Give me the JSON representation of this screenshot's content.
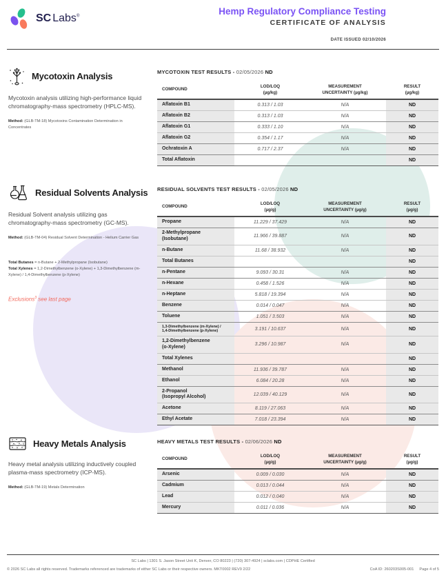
{
  "header": {
    "logo_sc": "SC",
    "logo_labs": "Labs",
    "logo_reg": "®",
    "title": "Hemp Regulatory Compliance Testing",
    "subtitle": "CERTIFICATE OF ANALYSIS",
    "date_issued": "DATE ISSUED 02/10/2026"
  },
  "colors": {
    "accent_purple": "#7a52f4",
    "logo_green": "#25bf8e",
    "logo_orange": "#f97a5d",
    "logo_navy": "#232150",
    "exclusions_red": "#f2695c",
    "circle_purple": "#eae6f8",
    "circle_teal": "#dfeeea",
    "circle_pink": "#fbeae6",
    "table_gray": "#e9e9e9"
  },
  "sections": [
    {
      "icon": "mycotoxin-spore-icon",
      "title": "Mycotoxin Analysis",
      "description": "Mycotoxin analysis utilizing high-performance liquid chromatography-mass spectrometry (HPLC-MS).",
      "method_label": "Method:",
      "method_text": " (GLB-TM-18) Mycotoxins Contamination Determination in Concentrates",
      "table": {
        "title": "MYCOTOXIN TEST RESULTS - ",
        "date": "02/05/2026 ",
        "overall_result": "ND",
        "columns": [
          {
            "label": "COMPOUND",
            "unit": ""
          },
          {
            "label": "LOD/LOQ",
            "unit": "(µg/kg)"
          },
          {
            "label": "MEASUREMENT",
            "unit": "UNCERTAINTY (µg/kg)"
          },
          {
            "label": "RESULT",
            "unit": "(µg/kg)"
          }
        ],
        "rows": [
          {
            "compound": "Aflatoxin B1",
            "lod_loq": "0.313 / 1.03",
            "uncertainty": "N/A",
            "result": "ND"
          },
          {
            "compound": "Aflatoxin B2",
            "lod_loq": "0.313 / 1.03",
            "uncertainty": "N/A",
            "result": "ND",
            "sep": true
          },
          {
            "compound": "Aflatoxin G1",
            "lod_loq": "0.333 / 1.10",
            "uncertainty": "N/A",
            "result": "ND"
          },
          {
            "compound": "Aflatoxin G2",
            "lod_loq": "0.354 / 1.17",
            "uncertainty": "N/A",
            "result": "ND",
            "sep": true
          },
          {
            "compound": "Ochratoxin A",
            "lod_loq": "0.717 / 2.37",
            "uncertainty": "N/A",
            "result": "ND",
            "sep": true
          },
          {
            "compound": "Total Aflatoxin",
            "lod_loq": "",
            "uncertainty": "",
            "result": "ND"
          }
        ]
      }
    },
    {
      "icon": "flasks-icon",
      "title": "Residual Solvents Analysis",
      "description": "Residual Solvent analysis utilizing gas chromatography-mass spectrometry (GC-MS).",
      "method_label": "Method:",
      "method_text": " (GLB-TM-04) Residual Solvent Determination - Helium Carrier Gas",
      "note_butanes_label": "Total Butanes",
      "note_butanes_text": " = n-Butane + 2-Methylpropane (Isobutane)",
      "note_xylenes_label": "Total Xylenes",
      "note_xylenes_text": " = 1,2-Dimethylbenzene (o-Xylene) + 1,3-Dimethylbenzene (m-Xylene) / 1,4-Dimethylbenzene (p-Xylene)",
      "exclusions_word": "Exclusions",
      "exclusions_sup": "3",
      "exclusions_rest": " see last page",
      "table": {
        "title": "RESIDUAL SOLVENTS TEST RESULTS - ",
        "date": "02/05/2026 ",
        "overall_result": "ND",
        "columns": [
          {
            "label": "COMPOUND",
            "unit": ""
          },
          {
            "label": "LOD/LOQ",
            "unit": "(µg/g)"
          },
          {
            "label": "MEASUREMENT",
            "unit": "UNCERTAINTY (µg/g)"
          },
          {
            "label": "RESULT",
            "unit": "(µg/g)"
          }
        ],
        "rows": [
          {
            "compound": "Propane",
            "lod_loq": "11.229 / 37.429",
            "uncertainty": "N/A",
            "result": "ND",
            "sep": true
          },
          {
            "compound": "2-Methylpropane\n(Isobutane)",
            "lod_loq": "11.966 / 39.887",
            "uncertainty": "N/A",
            "result": "ND"
          },
          {
            "compound": "n-Butane",
            "lod_loq": "11.68 / 38.932",
            "uncertainty": "N/A",
            "result": "ND"
          },
          {
            "compound": "Total Butanes",
            "lod_loq": "",
            "uncertainty": "",
            "result": "ND",
            "sep": true
          },
          {
            "compound": "n-Pentane",
            "lod_loq": "9.093 / 30.31",
            "uncertainty": "N/A",
            "result": "ND",
            "sep": true
          },
          {
            "compound": "n-Hexane",
            "lod_loq": "0.458 / 1.526",
            "uncertainty": "N/A",
            "result": "ND"
          },
          {
            "compound": "n-Heptane",
            "lod_loq": "5.818 / 19.394",
            "uncertainty": "N/A",
            "result": "ND"
          },
          {
            "compound": "Benzene",
            "lod_loq": "0.014 / 0.047",
            "uncertainty": "N/A",
            "result": "ND",
            "sep": true
          },
          {
            "compound": "Toluene",
            "lod_loq": "1.051 / 3.503",
            "uncertainty": "N/A",
            "result": "ND",
            "sep": true
          },
          {
            "compound": "1,3-Dimethylbenzene (m-Xylene) /\n1,4-Dimethylbenzene (p-Xylene)",
            "small": true,
            "lod_loq": "3.191 / 10.637",
            "uncertainty": "N/A",
            "result": "ND"
          },
          {
            "compound": "1,2-Dimethylbenzene\n(o-Xylene)",
            "lod_loq": "3.296 / 10.987",
            "uncertainty": "N/A",
            "result": "ND"
          },
          {
            "compound": "Total Xylenes",
            "lod_loq": "",
            "uncertainty": "",
            "result": "ND",
            "sep": true
          },
          {
            "compound": "Methanol",
            "lod_loq": "11.936 / 39.787",
            "uncertainty": "N/A",
            "result": "ND"
          },
          {
            "compound": "Ethanol",
            "lod_loq": "6.084 / 20.28",
            "uncertainty": "N/A",
            "result": "ND",
            "sep": true
          },
          {
            "compound": "2-Propanol\n(Isopropyl Alcohol)",
            "lod_loq": "12.039 / 40.129",
            "uncertainty": "N/A",
            "result": "ND"
          },
          {
            "compound": "Acetone",
            "lod_loq": "8.119 / 27.063",
            "uncertainty": "N/A",
            "result": "ND",
            "sep": true
          },
          {
            "compound": "Ethyl Acetate",
            "lod_loq": "7.018 / 23.394",
            "uncertainty": "N/A",
            "result": "ND"
          }
        ]
      }
    },
    {
      "icon": "metal-layers-icon",
      "title": "Heavy Metals Analysis",
      "description": "Heavy metal analysis utilizing inductively coupled plasma-mass spectrometry (ICP-MS).",
      "method_label": "Method:",
      "method_text": " (GLB-TM-19) Metals Determination",
      "table": {
        "title": "HEAVY METALS TEST RESULTS - ",
        "date": "02/06/2026 ",
        "overall_result": "ND",
        "columns": [
          {
            "label": "COMPOUND",
            "unit": ""
          },
          {
            "label": "LOD/LOQ",
            "unit": "(µg/g)"
          },
          {
            "label": "MEASUREMENT",
            "unit": "UNCERTAINTY (µg/g)"
          },
          {
            "label": "RESULT",
            "unit": "(µg/g)"
          }
        ],
        "rows": [
          {
            "compound": "Arsenic",
            "lod_loq": "0.009 / 0.030",
            "uncertainty": "N/A",
            "result": "ND",
            "sep": true
          },
          {
            "compound": "Cadmium",
            "lod_loq": "0.013 / 0.044",
            "uncertainty": "N/A",
            "result": "ND"
          },
          {
            "compound": "Lead",
            "lod_loq": "0.012 / 0.040",
            "uncertainty": "N/A",
            "result": "ND"
          },
          {
            "compound": "Mercury",
            "lod_loq": "0.011 / 0.036",
            "uncertainty": "N/A",
            "result": "ND"
          }
        ]
      }
    }
  ],
  "footer": {
    "line1": "SC Labs | 1301 S. Jason Street Unit K, Denver, CO 80223 | (720) 307-4924 | sclabs.com | CDPHE Certified",
    "line2_left": "© 2026 SC Labs all rights reserved. Trademarks referenced are trademarks of either SC Labs or their respective owners. MKT0002 REV9 2/22",
    "coa_id": "CoA ID: 260203S005-001",
    "page_number": "Page 4 of 5"
  }
}
